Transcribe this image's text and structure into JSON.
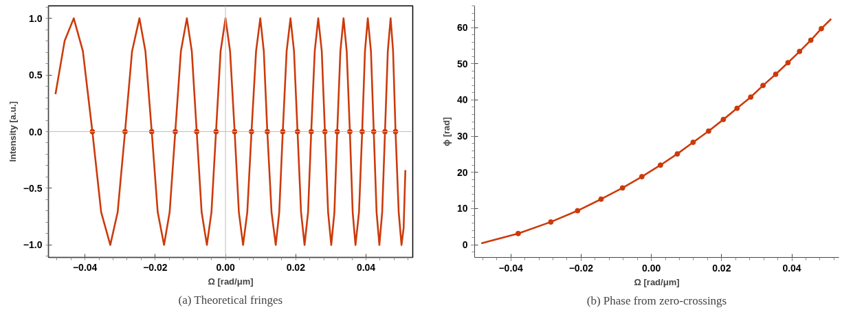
{
  "chart_data": [
    {
      "type": "line",
      "title": "(a) Theoretical fringes",
      "xlabel": "Ω [rad/μm]",
      "ylabel": "Intensity [a.u.]",
      "xlim": [
        -0.0504,
        0.0533
      ],
      "ylim": [
        -1.11,
        1.11
      ],
      "xticks": [
        {
          "value": -0.04,
          "label": "−0.04"
        },
        {
          "value": -0.02,
          "label": "−0.02"
        },
        {
          "value": 0,
          "label": "0.00"
        },
        {
          "value": 0.02,
          "label": "0.02"
        },
        {
          "value": 0.04,
          "label": "0.04"
        }
      ],
      "yticks": [
        {
          "value": -1,
          "label": "−1.0"
        },
        {
          "value": -0.5,
          "label": "−0.5"
        },
        {
          "value": 0,
          "label": "0.0"
        },
        {
          "value": 0.5,
          "label": "0.5"
        },
        {
          "value": 1,
          "label": "1.0"
        }
      ],
      "grid": false,
      "ref_lines": [
        {
          "axis": "x",
          "value": 0,
          "color": "#c8c8c8"
        },
        {
          "axis": "y",
          "value": 0,
          "color": "#bdbdbd"
        }
      ],
      "series": [
        {
          "marker": "none",
          "color": "#cc3a0a",
          "x": [
            -0.0484,
            -0.0458,
            -0.0432,
            -0.0406,
            -0.0379,
            -0.0354,
            -0.0328,
            -0.0307,
            -0.0286,
            -0.0266,
            -0.0245,
            -0.0228,
            -0.021,
            -0.0193,
            -0.0175,
            -0.0159,
            -0.0143,
            -0.0127,
            -0.011,
            -0.0096,
            -0.0082,
            -0.0068,
            -0.0053,
            -0.004,
            -0.0027,
            -0.0014,
            0.0,
            0.0013,
            0.0026,
            0.0038,
            0.005,
            0.0062,
            0.0074,
            0.0087,
            0.0099,
            0.0109,
            0.0119,
            0.0131,
            0.0143,
            0.0153,
            0.0163,
            0.0174,
            0.0185,
            0.0195,
            0.0205,
            0.0215,
            0.0225,
            0.0235,
            0.0244,
            0.0254,
            0.0264,
            0.0274,
            0.0283,
            0.0292,
            0.0301,
            0.031,
            0.0318,
            0.0327,
            0.0336,
            0.0345,
            0.0354,
            0.0362,
            0.037,
            0.038,
            0.0389,
            0.0397,
            0.0405,
            0.0414,
            0.0422,
            0.043,
            0.0438,
            0.0446,
            0.0454,
            0.0462,
            0.047,
            0.0477,
            0.0484,
            0.0493,
            0.0501,
            0.0507,
            0.0512
          ],
          "values": [
            0.33,
            0.8,
            1,
            0.71,
            0,
            -0.71,
            -1,
            -0.71,
            0,
            0.71,
            1,
            0.71,
            0,
            -0.71,
            -1,
            -0.71,
            0,
            0.71,
            1,
            0.71,
            0,
            -0.71,
            -1,
            -0.71,
            0,
            0.71,
            1,
            0.71,
            0,
            -0.71,
            -1,
            -0.71,
            0,
            0.71,
            1,
            0.71,
            0,
            -0.71,
            -1,
            -0.71,
            0,
            0.71,
            1,
            0.71,
            0,
            -0.71,
            -1,
            -0.71,
            0,
            0.71,
            1,
            0.71,
            0,
            -0.71,
            -1,
            -0.71,
            0,
            0.71,
            1,
            0.71,
            0,
            -0.71,
            -1,
            -0.71,
            0,
            0.71,
            1,
            0.71,
            0,
            -0.71,
            -1,
            -0.71,
            0,
            0.71,
            1,
            0.71,
            0,
            -0.71,
            -1,
            -0.85,
            -0.34
          ]
        },
        {
          "type": "scatter",
          "marker": "circle",
          "color": "#cc3a0a",
          "x": [
            -0.0379,
            -0.0286,
            -0.021,
            -0.0143,
            -0.0082,
            -0.0027,
            0.0026,
            0.0074,
            0.0119,
            0.0163,
            0.0205,
            0.0244,
            0.0283,
            0.0318,
            0.0354,
            0.0389,
            0.0422,
            0.0454,
            0.0484
          ],
          "values": [
            0,
            0,
            0,
            0,
            0,
            0,
            0,
            0,
            0,
            0,
            0,
            0,
            0,
            0,
            0,
            0,
            0,
            0,
            0
          ]
        }
      ]
    },
    {
      "type": "line",
      "title": "(b) Phase from zero-crossings",
      "xlabel": "Ω [rad/μm]",
      "ylabel": "ϕ [rad]",
      "xlim": [
        -0.0503,
        0.0534
      ],
      "ylim": [
        -3.5,
        66
      ],
      "xticks": [
        {
          "value": -0.04,
          "label": "−0.04"
        },
        {
          "value": -0.02,
          "label": "−0.02"
        },
        {
          "value": 0,
          "label": "0.00"
        },
        {
          "value": 0.02,
          "label": "0.02"
        },
        {
          "value": 0.04,
          "label": "0.04"
        }
      ],
      "yticks": [
        0,
        10,
        20,
        30,
        40,
        50,
        60
      ],
      "grid": false,
      "series": [
        {
          "marker": "none",
          "color": "#cc3a0a",
          "x": [
            -0.0484,
            -0.0379,
            -0.0286,
            -0.021,
            -0.0143,
            -0.0082,
            -0.0027,
            0.0026,
            0.0074,
            0.0119,
            0.0163,
            0.0205,
            0.0244,
            0.0283,
            0.0318,
            0.0354,
            0.0389,
            0.0422,
            0.0454,
            0.0484,
            0.0512
          ],
          "values": [
            0.4,
            3.1,
            6.3,
            9.4,
            12.6,
            15.7,
            18.8,
            22.0,
            25.1,
            28.3,
            31.4,
            34.6,
            37.7,
            40.8,
            44.0,
            47.1,
            50.3,
            53.4,
            56.5,
            59.7,
            62.4
          ]
        },
        {
          "type": "scatter",
          "marker": "circle",
          "color": "#cc3a0a",
          "x": [
            -0.0379,
            -0.0286,
            -0.021,
            -0.0143,
            -0.0082,
            -0.0027,
            0.0026,
            0.0074,
            0.0119,
            0.0163,
            0.0205,
            0.0244,
            0.0283,
            0.0318,
            0.0354,
            0.0389,
            0.0422,
            0.0454,
            0.0484
          ],
          "values": [
            3.1,
            6.3,
            9.4,
            12.6,
            15.7,
            18.8,
            22.0,
            25.1,
            28.3,
            31.4,
            34.6,
            37.7,
            40.8,
            44.0,
            47.1,
            50.3,
            53.4,
            56.5,
            59.7
          ]
        }
      ]
    }
  ]
}
